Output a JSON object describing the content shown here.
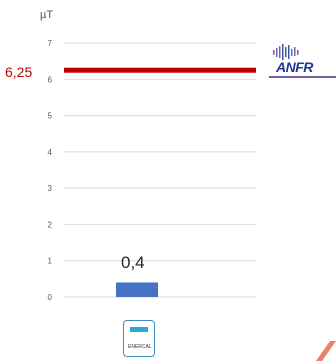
{
  "chart_data": {
    "type": "bar",
    "unit": "µT",
    "categories": [
      ""
    ],
    "values": [
      0.4
    ],
    "value_labels": [
      "0,4"
    ],
    "ylim": [
      0,
      7
    ],
    "yticks": [
      "0",
      "1",
      "2",
      "3",
      "4",
      "5",
      "6",
      "7"
    ],
    "grid": true,
    "reference_line": {
      "value": 6.25,
      "label": "6,25",
      "color": "#c00000"
    },
    "bar_color": "#4472c4"
  },
  "logos": {
    "anfr": "ANFR",
    "device_brand": "ENERCAL"
  }
}
